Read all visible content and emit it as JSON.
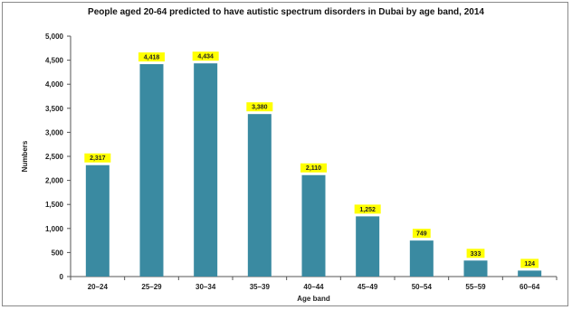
{
  "chart_data": {
    "type": "bar",
    "title": "People aged 20-64 predicted to have autistic spectrum disorders in Dubai by age band, 2014",
    "xlabel": "Age band",
    "ylabel": "Numbers",
    "categories": [
      "20–24",
      "25–29",
      "30–34",
      "35–39",
      "40–44",
      "45–49",
      "50–54",
      "55–59",
      "60–64"
    ],
    "values": [
      2317,
      4418,
      4434,
      3380,
      2110,
      1252,
      749,
      333,
      124
    ],
    "data_labels": [
      "2,317",
      "4,418",
      "4,434",
      "3,380",
      "2,110",
      "1,252",
      "749",
      "333",
      "124"
    ],
    "ylim": [
      0,
      5000
    ],
    "yticks": [
      0,
      500,
      1000,
      1500,
      2000,
      2500,
      3000,
      3500,
      4000,
      4500,
      5000
    ],
    "ytick_labels": [
      "0",
      "500",
      "1,000",
      "1,500",
      "2,000",
      "2,500",
      "3,000",
      "3,500",
      "4,000",
      "4,500",
      "5,000"
    ],
    "grid": false,
    "legend": "none",
    "colors": {
      "bar": "#3a8aa1",
      "label_bg": "#ffff00",
      "axis": "#555555"
    }
  }
}
